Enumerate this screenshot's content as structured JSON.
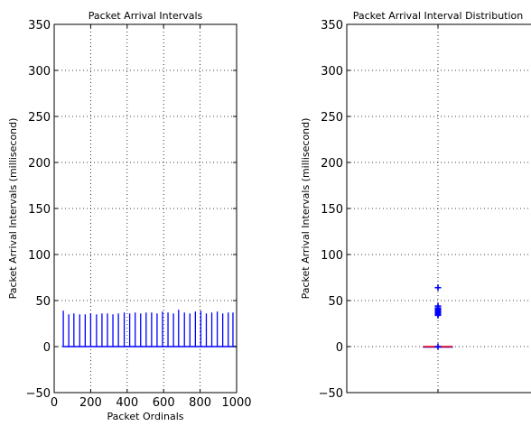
{
  "chart_data": [
    {
      "type": "line",
      "title": "Packet Arrival Intervals",
      "xlabel": "Packet Ordinals",
      "ylabel": "Packet Arrival Intervals (millisecond)",
      "xlim": [
        0,
        1000
      ],
      "ylim": [
        -50,
        350
      ],
      "xticks": [
        0,
        200,
        400,
        600,
        800,
        1000
      ],
      "yticks": [
        -50,
        0,
        50,
        100,
        150,
        200,
        250,
        300,
        350
      ],
      "grid": true,
      "series_color": "#0000ff",
      "spike_x": [
        50,
        80,
        108,
        140,
        170,
        200,
        232,
        262,
        292,
        322,
        352,
        384,
        414,
        444,
        474,
        504,
        534,
        564,
        594,
        624,
        654,
        682,
        714,
        744,
        774,
        804,
        834,
        864,
        894,
        924,
        954,
        980
      ],
      "spike_y": [
        39,
        35,
        36,
        35,
        35,
        36,
        35,
        36,
        36,
        35,
        36,
        37,
        36,
        37,
        36,
        37,
        37,
        36,
        38,
        37,
        36,
        40,
        37,
        36,
        38,
        39,
        36,
        37,
        38,
        36,
        37,
        37
      ]
    },
    {
      "type": "box",
      "title": "Packet Arrival Interval Distribution",
      "xlabel": "",
      "ylabel": "Packet Arrival Intervals (millisecond)",
      "ylim": [
        -50,
        350
      ],
      "yticks": [
        -50,
        0,
        50,
        100,
        150,
        200,
        250,
        300,
        350
      ],
      "grid": true,
      "median": 0,
      "q1": 0,
      "q3": 0,
      "whisker_low": 0,
      "whisker_high": 0,
      "median_color": "#ff0000",
      "box_color": "#0000ff",
      "outliers": [
        0,
        34,
        35,
        36,
        37,
        38,
        39,
        40,
        41,
        42,
        44,
        64
      ]
    }
  ]
}
